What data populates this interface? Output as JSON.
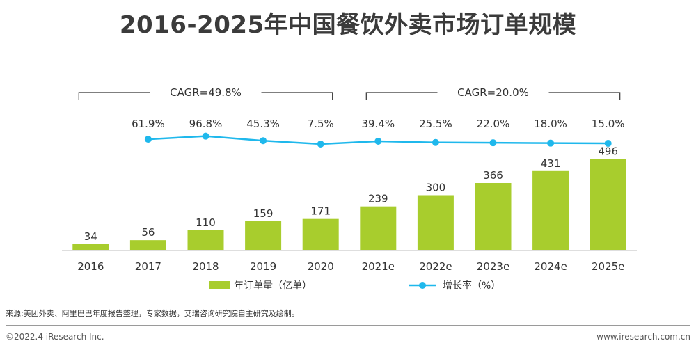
{
  "title": "2016-2025年中国餐饮外卖市场订单规模",
  "chart_data": {
    "type": "bar",
    "title": "2016-2025年中国餐饮外卖市场订单规模",
    "categories": [
      "2016",
      "2017",
      "2018",
      "2019",
      "2020",
      "2021e",
      "2022e",
      "2023e",
      "2024e",
      "2025e"
    ],
    "bar_series": {
      "name": "年订单量（亿单）",
      "values": [
        34,
        56,
        110,
        159,
        171,
        239,
        300,
        366,
        431,
        496
      ],
      "labels": [
        "34",
        "56",
        "110",
        "159",
        "171",
        "239",
        "300",
        "366",
        "431",
        "496"
      ],
      "color": "#a8cd2d"
    },
    "line_series": {
      "name": "增长率（%）",
      "values": [
        null,
        61.9,
        96.8,
        45.3,
        7.5,
        39.4,
        25.5,
        22.0,
        18.0,
        15.0
      ],
      "labels": [
        "",
        "61.9%",
        "96.8%",
        "45.3%",
        "7.5%",
        "39.4%",
        "25.5%",
        "22.0%",
        "18.0%",
        "15.0%"
      ],
      "color": "#1fb8ec"
    },
    "cagr": [
      {
        "label": "CAGR=49.8%",
        "from": 0,
        "to": 4
      },
      {
        "label": "CAGR=20.0%",
        "from": 5,
        "to": 9
      }
    ],
    "legend_position": "bottom",
    "grid": false
  },
  "source": "来源:美团外卖、阿里巴巴年度报告整理，专家数据，艾瑞咨询研究院自主研究及绘制。",
  "footer": {
    "copyright": "©2022.4 iResearch Inc.",
    "website": "www.iresearch.com.cn"
  }
}
